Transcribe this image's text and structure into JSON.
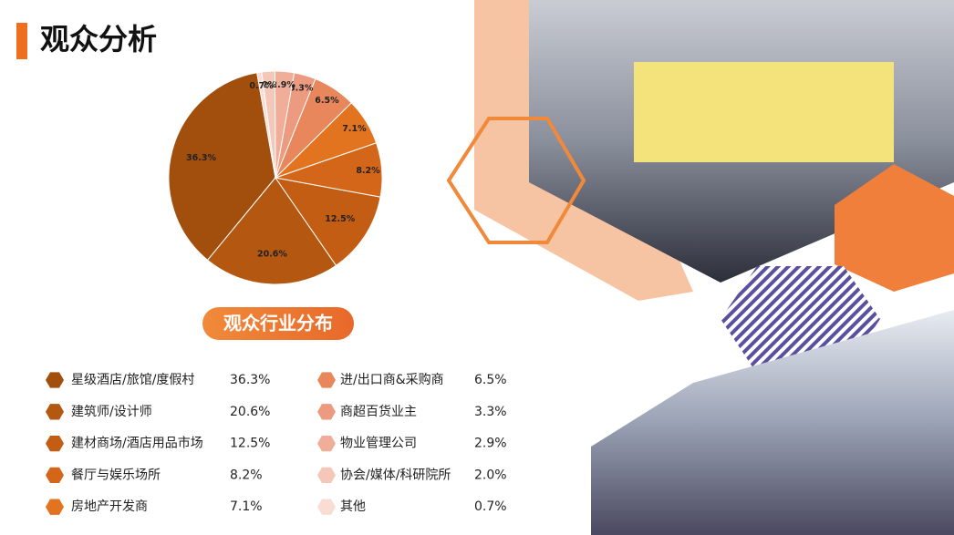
{
  "heading": "观众分析",
  "chart_data": {
    "type": "pie",
    "title": "观众行业分布",
    "categories": [
      "星级酒店/旅馆/度假村",
      "建筑师/设计师",
      "建材商场/酒店用品市场",
      "餐厅与娱乐场所",
      "房地产开发商",
      "进/出口商&采购商",
      "商超百货业主",
      "物业管理公司",
      "协会/媒体/科研院所",
      "其他"
    ],
    "values": [
      36.3,
      20.6,
      12.5,
      8.2,
      7.1,
      6.5,
      3.3,
      2.9,
      2,
      0.7
    ],
    "value_labels": [
      "36.3%",
      "20.6%",
      "12.5%",
      "8.2%",
      "7.1%",
      "6.5%",
      "3.3%",
      "2.9%",
      "2%",
      "0.7%"
    ],
    "legend_value_labels": [
      "36.3%",
      "20.6%",
      "12.5%",
      "8.2%",
      "7.1%",
      "6.5%",
      "3.3%",
      "2.9%",
      "2.0%",
      "0.7%"
    ],
    "colors": [
      "#a24f0e",
      "#b45710",
      "#c35d14",
      "#d4661a",
      "#e2731f",
      "#e8875c",
      "#ec9a80",
      "#f0ae98",
      "#f5c7b8",
      "#f9ddd4"
    ]
  }
}
